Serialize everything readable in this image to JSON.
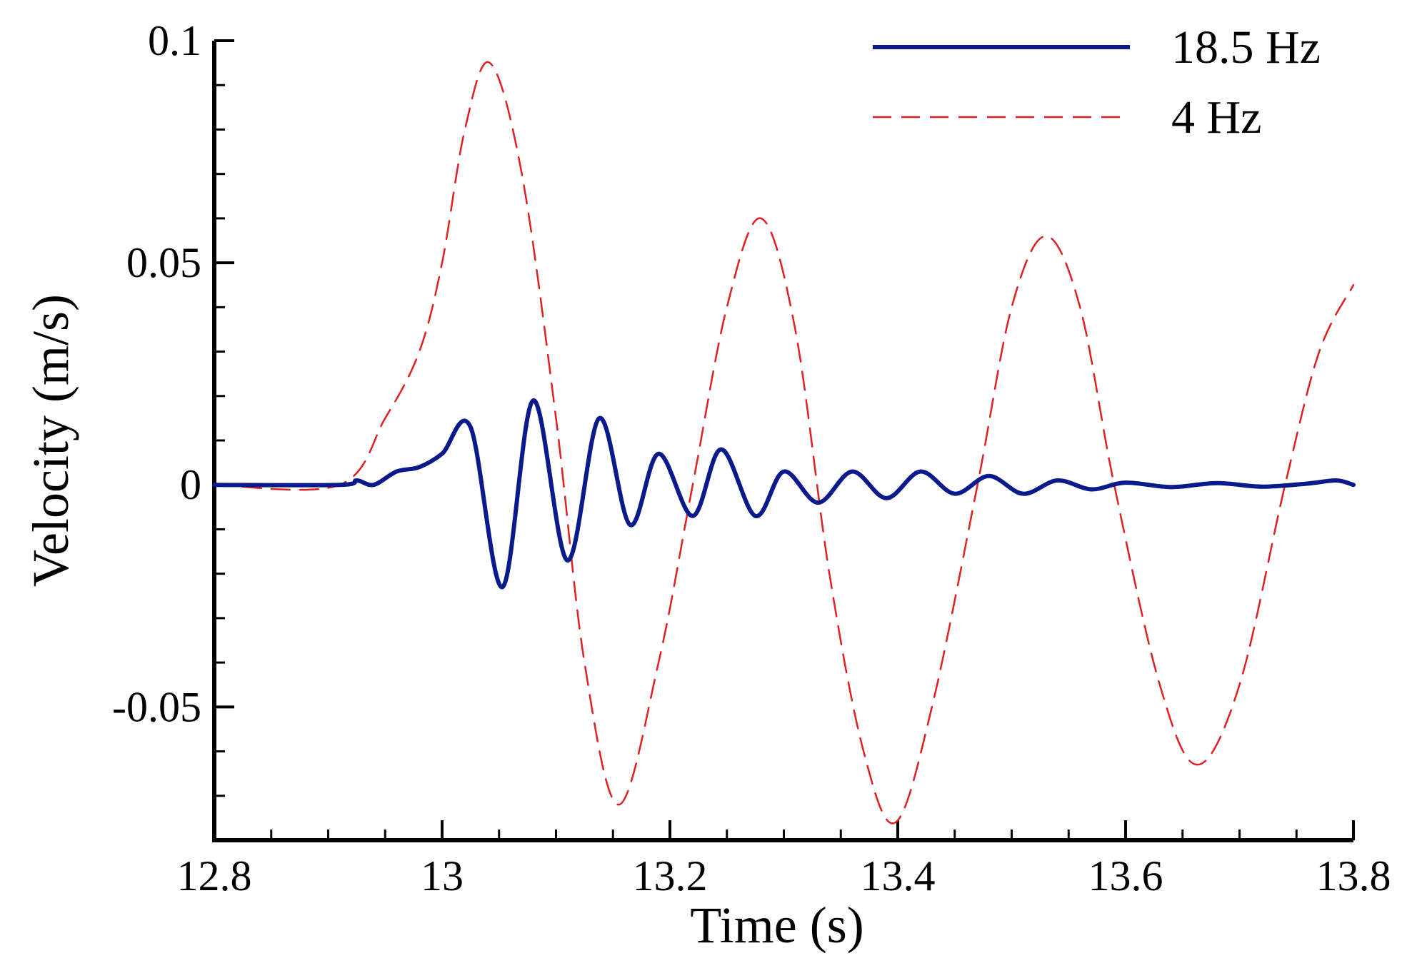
{
  "chart_data": {
    "type": "line",
    "title": "",
    "xlabel": "Time (s)",
    "ylabel": "Velocity (m/s)",
    "xlim": [
      12.8,
      13.8
    ],
    "ylim": [
      -0.08,
      0.1
    ],
    "x_ticks": [
      12.8,
      13.0,
      13.2,
      13.4,
      13.6,
      13.8
    ],
    "x_tick_labels": [
      "12.8",
      "13",
      "13.2",
      "13.4",
      "13.6",
      "13.8"
    ],
    "x_minor_ticks": [
      12.85,
      12.9,
      12.95,
      13.05,
      13.1,
      13.15,
      13.25,
      13.3,
      13.35,
      13.45,
      13.5,
      13.55,
      13.65,
      13.7,
      13.75
    ],
    "y_ticks": [
      -0.05,
      0,
      0.05,
      0.1
    ],
    "y_tick_labels": [
      "-0.05",
      "0",
      "0.05",
      "0.1"
    ],
    "y_minor_ticks": [
      -0.07,
      -0.06,
      -0.04,
      -0.03,
      -0.02,
      -0.01,
      0.01,
      0.02,
      0.03,
      0.04,
      0.06,
      0.07,
      0.08,
      0.09
    ],
    "grid": false,
    "legend_position": "top-right",
    "series": [
      {
        "name": "18.5 Hz",
        "color": "#0a1a8c",
        "style": "solid",
        "x": [
          12.8,
          12.91,
          12.925,
          12.94,
          12.96,
          12.98,
          13.0,
          13.025,
          13.053,
          13.08,
          13.11,
          13.138,
          13.165,
          13.19,
          13.22,
          13.245,
          13.275,
          13.3,
          13.33,
          13.36,
          13.39,
          13.42,
          13.45,
          13.48,
          13.51,
          13.54,
          13.57,
          13.6,
          13.64,
          13.68,
          13.72,
          13.76,
          13.785,
          13.8
        ],
        "y": [
          0,
          0,
          0.001,
          0,
          0.003,
          0.004,
          0.007,
          0.013,
          -0.023,
          0.019,
          -0.017,
          0.015,
          -0.009,
          0.007,
          -0.007,
          0.008,
          -0.007,
          0.003,
          -0.004,
          0.003,
          -0.003,
          0.003,
          -0.002,
          0.002,
          -0.002,
          0.001,
          -0.001,
          0.0005,
          -0.0005,
          0.0004,
          -0.0004,
          0.0003,
          0.001,
          0
        ]
      },
      {
        "name": "4 Hz",
        "color": "#e02020",
        "style": "dashed",
        "x": [
          12.8,
          12.91,
          12.95,
          12.98,
          13.0,
          13.02,
          13.042,
          13.07,
          13.1,
          13.125,
          13.155,
          13.19,
          13.22,
          13.25,
          13.28,
          13.31,
          13.34,
          13.37,
          13.398,
          13.43,
          13.47,
          13.5,
          13.53,
          13.56,
          13.59,
          13.63,
          13.663,
          13.7,
          13.74,
          13.77,
          13.8
        ],
        "y": [
          0,
          0,
          0.015,
          0.03,
          0.05,
          0.08,
          0.095,
          0.07,
          0.015,
          -0.04,
          -0.072,
          -0.04,
          0.0,
          0.04,
          0.06,
          0.035,
          -0.02,
          -0.06,
          -0.076,
          -0.05,
          0.0,
          0.04,
          0.056,
          0.04,
          0.0,
          -0.045,
          -0.063,
          -0.045,
          0.0,
          0.03,
          0.045
        ]
      }
    ]
  }
}
